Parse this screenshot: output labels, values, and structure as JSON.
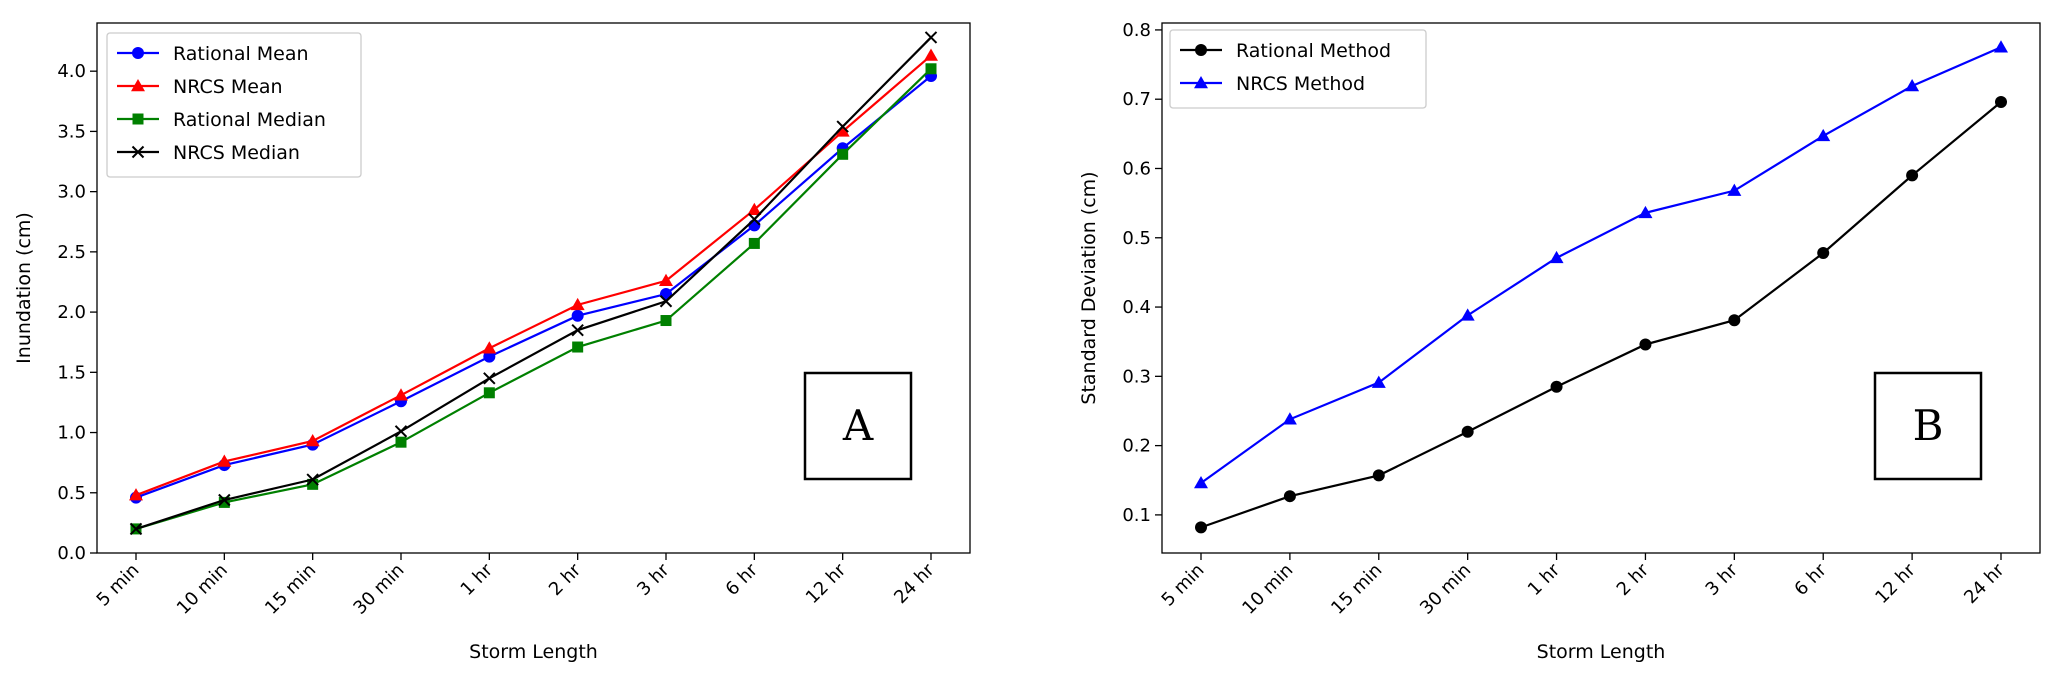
{
  "chart_data": [
    {
      "type": "line",
      "panel_label": "A",
      "title": "",
      "xlabel": "Storm Length",
      "ylabel": "Inundation (cm)",
      "categories": [
        "5 min",
        "10 min",
        "15 min",
        "30 min",
        "1 hr",
        "2 hr",
        "3 hr",
        "6 hr",
        "12 hr",
        "24 hr"
      ],
      "ylim": [
        0.0,
        4.4
      ],
      "yticks": [
        0.0,
        0.5,
        1.0,
        1.5,
        2.0,
        2.5,
        3.0,
        3.5,
        4.0
      ],
      "ytick_labels": [
        "0.0",
        "0.5",
        "1.0",
        "1.5",
        "2.0",
        "2.5",
        "3.0",
        "3.5",
        "4.0"
      ],
      "legend_position": "upper-left",
      "series": [
        {
          "name": "Rational Mean",
          "color": "#0000ff",
          "marker": "circle",
          "values": [
            0.46,
            0.73,
            0.9,
            1.26,
            1.63,
            1.97,
            2.15,
            2.72,
            3.36,
            3.96
          ]
        },
        {
          "name": "NRCS Mean",
          "color": "#ff0000",
          "marker": "triangle",
          "values": [
            0.48,
            0.76,
            0.93,
            1.31,
            1.7,
            2.06,
            2.26,
            2.85,
            3.5,
            4.13
          ]
        },
        {
          "name": "Rational Median",
          "color": "#008000",
          "marker": "square",
          "values": [
            0.2,
            0.42,
            0.57,
            0.92,
            1.33,
            1.71,
            1.93,
            2.57,
            3.31,
            4.02
          ]
        },
        {
          "name": "NRCS Median",
          "color": "#000000",
          "marker": "x",
          "values": [
            0.2,
            0.44,
            0.61,
            1.01,
            1.45,
            1.85,
            2.09,
            2.77,
            3.54,
            4.28
          ]
        }
      ]
    },
    {
      "type": "line",
      "panel_label": "B",
      "title": "",
      "xlabel": "Storm Length",
      "ylabel": "Standard Deviation (cm)",
      "categories": [
        "5 min",
        "10 min",
        "15 min",
        "30 min",
        "1 hr",
        "2 hr",
        "3 hr",
        "6 hr",
        "12 hr",
        "24 hr"
      ],
      "ylim": [
        0.045,
        0.81
      ],
      "yticks": [
        0.1,
        0.2,
        0.3,
        0.4,
        0.5,
        0.6,
        0.7,
        0.8
      ],
      "ytick_labels": [
        "0.1",
        "0.2",
        "0.3",
        "0.4",
        "0.5",
        "0.6",
        "0.7",
        "0.8"
      ],
      "legend_position": "upper-left",
      "series": [
        {
          "name": "Rational Method",
          "color": "#000000",
          "marker": "circle",
          "values": [
            0.082,
            0.127,
            0.157,
            0.22,
            0.285,
            0.346,
            0.381,
            0.478,
            0.59,
            0.696
          ]
        },
        {
          "name": "NRCS Method",
          "color": "#0000ff",
          "marker": "triangle",
          "values": [
            0.146,
            0.238,
            0.291,
            0.388,
            0.471,
            0.536,
            0.568,
            0.647,
            0.719,
            0.775
          ]
        }
      ]
    }
  ]
}
